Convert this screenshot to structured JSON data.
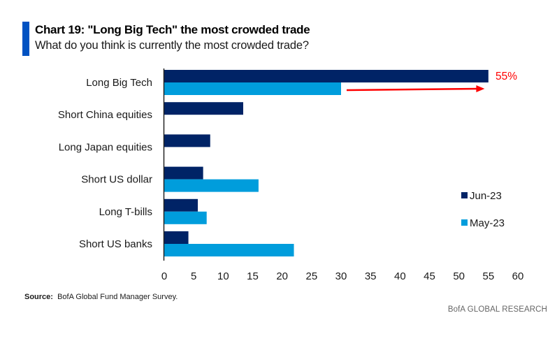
{
  "header": {
    "title": "Chart 19: \"Long Big Tech\" the most crowded trade",
    "subtitle": "What do you think is currently the most crowded trade?"
  },
  "footer": {
    "source_label": "Source:",
    "source_text": "BofA Global Fund Manager Survey.",
    "brand": "BofA GLOBAL RESEARCH"
  },
  "colors": {
    "title_accent": "#0052c2",
    "jun": "#002366",
    "may": "#009ddc",
    "annotation": "#ff0000"
  },
  "chart_data": {
    "type": "bar",
    "orientation": "horizontal",
    "title": "Chart 19: \"Long Big Tech\" the most crowded trade",
    "subtitle": "What do you think is currently the most crowded trade?",
    "xlabel": "",
    "ylabel": "",
    "xlim": [
      0,
      60
    ],
    "xticks": [
      0,
      5,
      10,
      15,
      20,
      25,
      30,
      35,
      40,
      45,
      50,
      55,
      60
    ],
    "grid": false,
    "legend_position": "right",
    "categories": [
      "Long Big Tech",
      "Short China equities",
      "Long Japan equities",
      "Short US dollar",
      "Long T-bills",
      "Short US banks"
    ],
    "series": [
      {
        "name": "Jun-23",
        "color": "#002366",
        "values": [
          55,
          13.4,
          7.8,
          6.6,
          5.7,
          4.1
        ]
      },
      {
        "name": "May-23",
        "color": "#009ddc",
        "values": [
          30,
          null,
          null,
          16,
          7.2,
          22
        ]
      }
    ],
    "annotations": [
      {
        "text": "55%",
        "type": "arrow",
        "from_value": 30,
        "to_value": 54,
        "category": "Long Big Tech",
        "color": "#ff0000"
      }
    ]
  }
}
